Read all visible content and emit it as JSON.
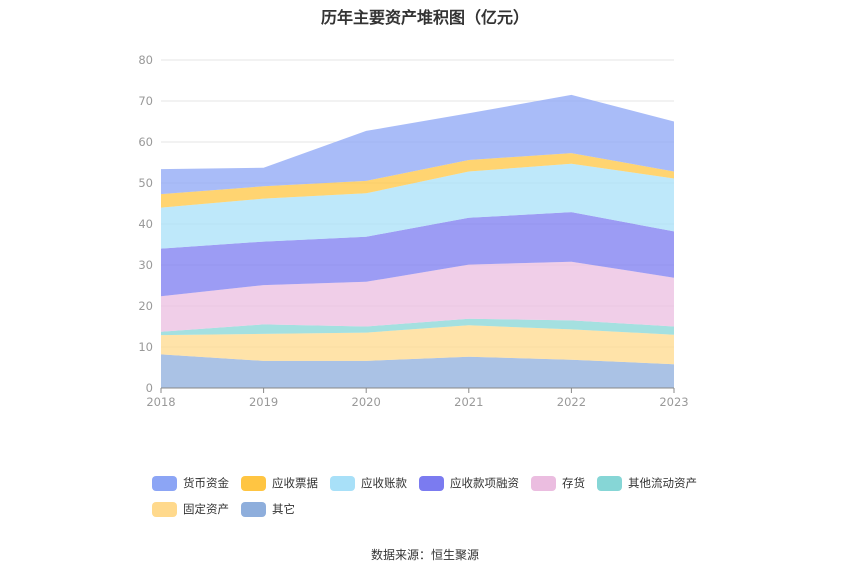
{
  "chart_data": {
    "type": "area",
    "stacked": true,
    "title": "历年主要资产堆积图（亿元）",
    "source_label": "数据来源：",
    "source_name": "恒生聚源",
    "categories": [
      "2018",
      "2019",
      "2020",
      "2021",
      "2022",
      "2023"
    ],
    "ylim": [
      0,
      80
    ],
    "yticks": [
      "0",
      "10",
      "20",
      "30",
      "40",
      "50",
      "60",
      "70",
      "80"
    ],
    "grid": true,
    "legend_position": "bottom",
    "series": [
      {
        "name": "其它",
        "color": "#8eaedc",
        "values": [
          8.2,
          6.6,
          6.6,
          7.6,
          6.9,
          5.8
        ]
      },
      {
        "name": "固定资产",
        "color": "#ffd98c",
        "values": [
          4.7,
          6.6,
          6.9,
          7.7,
          7.4,
          7.2
        ]
      },
      {
        "name": "其他流动资产",
        "color": "#86d6d6",
        "values": [
          0.8,
          2.3,
          1.5,
          1.6,
          2.2,
          2.0
        ]
      },
      {
        "name": "存货",
        "color": "#ebbde0",
        "values": [
          8.7,
          9.6,
          10.9,
          13.2,
          14.3,
          11.9
        ]
      },
      {
        "name": "应收款项融资",
        "color": "#7b7bf0",
        "values": [
          11.6,
          10.6,
          11.0,
          11.4,
          12.1,
          11.3
        ]
      },
      {
        "name": "应收账款",
        "color": "#a8e0f8",
        "values": [
          10.0,
          10.5,
          10.6,
          11.3,
          11.8,
          12.9
        ]
      },
      {
        "name": "应收票据",
        "color": "#ffc542",
        "values": [
          3.3,
          3.0,
          3.0,
          2.8,
          2.6,
          1.7
        ]
      },
      {
        "name": "货币资金",
        "color": "#8ca5f5",
        "values": [
          6.1,
          4.5,
          12.2,
          11.4,
          14.2,
          12.2
        ]
      }
    ]
  },
  "legend": [
    [
      "货币资金",
      "应收票据",
      "应收账款",
      "应收款项融资",
      "存货",
      "其他流动资产"
    ],
    [
      "固定资产",
      "其它"
    ]
  ]
}
